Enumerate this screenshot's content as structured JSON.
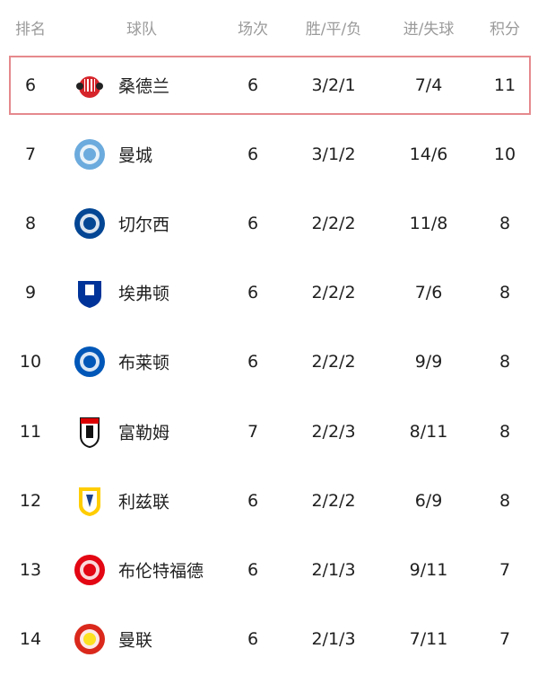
{
  "headers": {
    "rank": "排名",
    "team": "球队",
    "played": "场次",
    "wdl": "胜/平/负",
    "goals": "进/失球",
    "points": "积分"
  },
  "highlight_color": "#e5898d",
  "rows": [
    {
      "rank": "6",
      "team": "桑德兰",
      "played": "6",
      "wdl": "3/2/1",
      "goals": "7/4",
      "points": "11",
      "logo": "sunderland-crest",
      "color": "#d6252b",
      "highlighted": true
    },
    {
      "rank": "7",
      "team": "曼城",
      "played": "6",
      "wdl": "3/1/2",
      "goals": "14/6",
      "points": "10",
      "logo": "man-city-crest",
      "color": "#6cabdd"
    },
    {
      "rank": "8",
      "team": "切尔西",
      "played": "6",
      "wdl": "2/2/2",
      "goals": "11/8",
      "points": "8",
      "logo": "chelsea-crest",
      "color": "#034694"
    },
    {
      "rank": "9",
      "team": "埃弗顿",
      "played": "6",
      "wdl": "2/2/2",
      "goals": "7/6",
      "points": "8",
      "logo": "everton-crest",
      "color": "#003399"
    },
    {
      "rank": "10",
      "team": "布莱顿",
      "played": "6",
      "wdl": "2/2/2",
      "goals": "9/9",
      "points": "8",
      "logo": "brighton-crest",
      "color": "#0057b8"
    },
    {
      "rank": "11",
      "team": "富勒姆",
      "played": "7",
      "wdl": "2/2/3",
      "goals": "8/11",
      "points": "8",
      "logo": "fulham-crest",
      "color": "#111111"
    },
    {
      "rank": "12",
      "team": "利兹联",
      "played": "6",
      "wdl": "2/2/2",
      "goals": "6/9",
      "points": "8",
      "logo": "leeds-crest",
      "color": "#ffcd00"
    },
    {
      "rank": "13",
      "team": "布伦特福德",
      "played": "6",
      "wdl": "2/1/3",
      "goals": "9/11",
      "points": "7",
      "logo": "brentford-crest",
      "color": "#e30613"
    },
    {
      "rank": "14",
      "team": "曼联",
      "played": "6",
      "wdl": "2/1/3",
      "goals": "7/11",
      "points": "7",
      "logo": "man-united-crest",
      "color": "#da291c"
    }
  ]
}
